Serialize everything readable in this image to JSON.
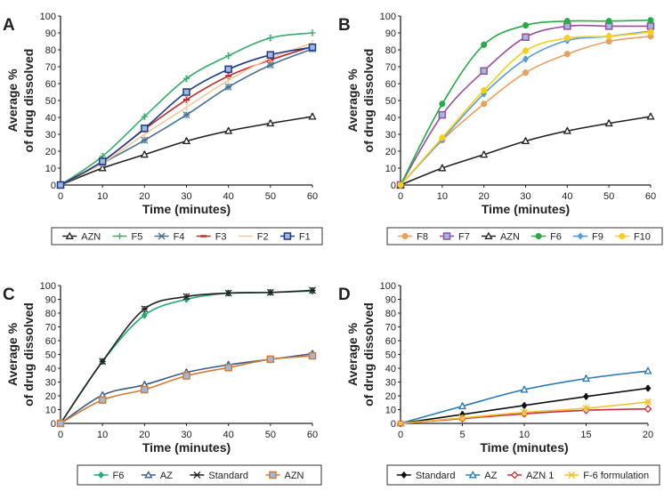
{
  "chart_data": [
    {
      "type": "line",
      "panel_label": "A",
      "xlabel": "Time (minutes)",
      "ylabel": [
        "Average %",
        "of drug dissolved"
      ],
      "x": [
        0,
        10,
        20,
        30,
        40,
        50,
        60
      ],
      "xlim": [
        0,
        60
      ],
      "ylim": [
        0,
        100
      ],
      "xticks": [
        0,
        10,
        20,
        30,
        40,
        50,
        60
      ],
      "yticks": [
        0,
        10,
        20,
        30,
        40,
        50,
        60,
        70,
        80,
        90,
        100
      ],
      "legend": "bottom",
      "series": [
        {
          "name": "AZN",
          "color": "#222222",
          "marker": "triangle",
          "values": [
            0,
            10,
            18,
            26,
            32,
            36.5,
            40.5
          ]
        },
        {
          "name": "F5",
          "color": "#3aaa6e",
          "marker": "plus",
          "values": [
            0,
            17,
            40.5,
            63,
            76.5,
            87,
            90
          ]
        },
        {
          "name": "F4",
          "color": "#4a7090",
          "marker": "x",
          "values": [
            0,
            13,
            26.5,
            41.5,
            58,
            71,
            80.5
          ]
        },
        {
          "name": "F3",
          "color": "#c0282a",
          "marker": "dash",
          "values": [
            0,
            14,
            33,
            50.5,
            64.5,
            74,
            82
          ]
        },
        {
          "name": "F2",
          "color": "#f2c8a0",
          "marker": "none",
          "values": [
            0,
            13,
            30,
            46,
            62,
            75,
            84
          ]
        },
        {
          "name": "F1",
          "color": "#1f3a80",
          "marker": "square",
          "values": [
            0,
            14,
            33.5,
            55,
            68.5,
            77,
            81.5
          ]
        }
      ]
    },
    {
      "type": "line",
      "panel_label": "B",
      "xlabel": "Time (minutes)",
      "ylabel": [
        "Average %",
        "of drug dissolved"
      ],
      "x": [
        0,
        10,
        20,
        30,
        40,
        50,
        60
      ],
      "xlim": [
        0,
        60
      ],
      "ylim": [
        0,
        100
      ],
      "xticks": [
        0,
        10,
        20,
        30,
        40,
        50,
        60
      ],
      "yticks": [
        0,
        10,
        20,
        30,
        40,
        50,
        60,
        70,
        80,
        90,
        100
      ],
      "legend": "bottom",
      "series": [
        {
          "name": "F8",
          "color": "#e8a060",
          "marker": "circle",
          "values": [
            0,
            26.5,
            48,
            66.5,
            77.5,
            85,
            88
          ]
        },
        {
          "name": "F7",
          "color": "#9b4e9b",
          "marker": "square",
          "values": [
            0,
            41.5,
            67.5,
            87.5,
            94,
            94,
            94
          ]
        },
        {
          "name": "AZN",
          "color": "#222222",
          "marker": "triangle",
          "values": [
            0,
            10,
            18,
            26,
            32,
            36.5,
            40.5
          ]
        },
        {
          "name": "F6",
          "color": "#2aa84a",
          "marker": "circle",
          "values": [
            0,
            48,
            83,
            94.5,
            97,
            97,
            97.5
          ]
        },
        {
          "name": "F9",
          "color": "#5b9bd5",
          "marker": "diamond",
          "values": [
            0,
            27,
            54,
            74.5,
            85.5,
            88,
            91
          ]
        },
        {
          "name": "F10",
          "color": "#f5d020",
          "marker": "circle",
          "values": [
            0,
            28,
            56,
            79.5,
            87,
            88,
            90.5
          ]
        }
      ]
    },
    {
      "type": "line",
      "panel_label": "C",
      "xlabel": "Time (minutes)",
      "ylabel": [
        "Average %",
        "of drug dissolved"
      ],
      "x": [
        0,
        10,
        20,
        30,
        40,
        50,
        60
      ],
      "xlim": [
        0,
        60
      ],
      "ylim": [
        0,
        100
      ],
      "xticks": [
        0,
        10,
        20,
        30,
        40,
        50,
        60
      ],
      "yticks": [
        0,
        10,
        20,
        30,
        40,
        50,
        60,
        70,
        80,
        90,
        100
      ],
      "legend": "bottom",
      "series": [
        {
          "name": "F6",
          "color": "#2aa870",
          "marker": "diamond",
          "values": [
            0,
            45,
            78.5,
            90,
            94.5,
            95,
            96
          ]
        },
        {
          "name": "AZ",
          "color": "#3b5a8a",
          "marker": "triangle",
          "values": [
            0,
            20.5,
            28,
            37,
            42.5,
            46.5,
            50.5
          ]
        },
        {
          "name": "Standard",
          "color": "#222222",
          "marker": "x",
          "values": [
            0,
            45,
            83,
            92,
            94.5,
            95,
            96.5
          ]
        },
        {
          "name": "AZN",
          "color": "#d07b3a",
          "marker": "square",
          "values": [
            0,
            17,
            24.5,
            34.5,
            40.5,
            46.5,
            49
          ]
        }
      ]
    },
    {
      "type": "line",
      "panel_label": "D",
      "xlabel": "Time (minutes)",
      "ylabel": [
        "Average %",
        "of drug dissolved"
      ],
      "x": [
        0,
        5,
        10,
        15,
        20
      ],
      "xlim": [
        0,
        20
      ],
      "ylim": [
        0,
        100
      ],
      "xticks": [
        0,
        5,
        10,
        15,
        20
      ],
      "yticks": [
        0,
        10,
        20,
        30,
        40,
        50,
        60,
        70,
        80,
        90,
        100
      ],
      "legend": "bottom",
      "series": [
        {
          "name": "Standard",
          "color": "#111111",
          "marker": "diamond",
          "values": [
            0,
            6.5,
            13,
            19.5,
            25.5
          ]
        },
        {
          "name": "AZ",
          "color": "#2878b8",
          "marker": "triangle",
          "values": [
            0,
            12.5,
            24.5,
            32.5,
            38
          ]
        },
        {
          "name": "AZN 1",
          "color": "#c83040",
          "marker": "diamond-open",
          "values": [
            0,
            3.5,
            7,
            9.5,
            10.5
          ]
        },
        {
          "name": "F-6 formulation",
          "color": "#f0c030",
          "marker": "x",
          "values": [
            0,
            4,
            8,
            11,
            15.5
          ]
        }
      ]
    }
  ]
}
